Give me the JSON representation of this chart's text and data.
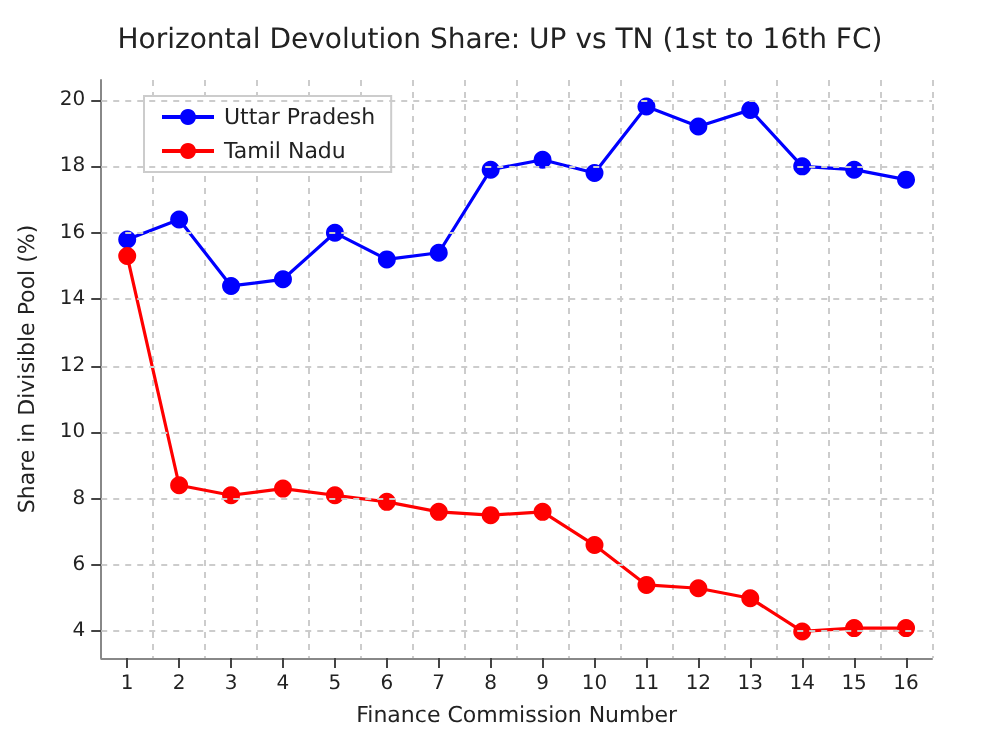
{
  "chart_data": {
    "type": "line",
    "title": "Horizontal Devolution Share: UP vs TN (1st to 16th FC)",
    "xlabel": "Finance Commission Number",
    "ylabel": "Share in Divisible Pool (%)",
    "categories": [
      "1",
      "2",
      "3",
      "4",
      "5",
      "6",
      "7",
      "8",
      "9",
      "10",
      "11",
      "12",
      "13",
      "14",
      "15",
      "16"
    ],
    "series": [
      {
        "name": "Uttar Pradesh",
        "color": "#0000ff",
        "values": [
          15.8,
          16.4,
          14.4,
          14.6,
          16.0,
          15.2,
          15.4,
          17.9,
          18.2,
          17.8,
          19.8,
          19.2,
          19.7,
          18.0,
          17.9,
          17.6
        ]
      },
      {
        "name": "Tamil Nadu",
        "color": "#ff0000",
        "values": [
          15.3,
          8.4,
          8.1,
          8.3,
          8.1,
          7.9,
          7.6,
          7.5,
          7.6,
          6.6,
          5.4,
          5.3,
          5.0,
          4.0,
          4.1,
          4.1
        ]
      }
    ],
    "ylim": [
      3.2,
      20.6
    ],
    "yticks": [
      4,
      6,
      8,
      10,
      12,
      14,
      16,
      18,
      20
    ],
    "grid": true,
    "legend": "top left",
    "marker": "circle",
    "line_style": "solid"
  }
}
